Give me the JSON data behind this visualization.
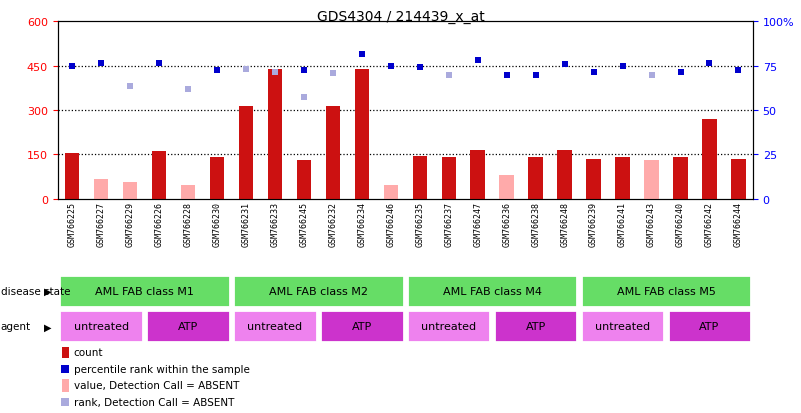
{
  "title": "GDS4304 / 214439_x_at",
  "samples": [
    "GSM766225",
    "GSM766227",
    "GSM766229",
    "GSM766226",
    "GSM766228",
    "GSM766230",
    "GSM766231",
    "GSM766233",
    "GSM766245",
    "GSM766232",
    "GSM766234",
    "GSM766246",
    "GSM766235",
    "GSM766237",
    "GSM766247",
    "GSM766236",
    "GSM766238",
    "GSM766248",
    "GSM766239",
    "GSM766241",
    "GSM766243",
    "GSM766240",
    "GSM766242",
    "GSM766244"
  ],
  "count": [
    155,
    0,
    0,
    160,
    0,
    140,
    315,
    440,
    130,
    315,
    440,
    0,
    145,
    140,
    165,
    0,
    140,
    165,
    135,
    140,
    0,
    140,
    270,
    135
  ],
  "count_absent": [
    0,
    65,
    55,
    0,
    45,
    0,
    0,
    0,
    0,
    0,
    0,
    45,
    0,
    0,
    0,
    80,
    0,
    0,
    0,
    0,
    130,
    0,
    0,
    0
  ],
  "rank_present": [
    450,
    460,
    0,
    460,
    0,
    435,
    0,
    0,
    435,
    0,
    490,
    450,
    445,
    0,
    470,
    420,
    420,
    455,
    430,
    450,
    0,
    430,
    460,
    435
  ],
  "rank_absent": [
    0,
    0,
    380,
    0,
    370,
    0,
    440,
    430,
    345,
    425,
    0,
    0,
    0,
    420,
    0,
    0,
    0,
    0,
    0,
    0,
    420,
    0,
    0,
    0
  ],
  "ylim_left": [
    0,
    600
  ],
  "ylim_right": [
    0,
    100
  ],
  "yticks_left": [
    0,
    150,
    300,
    450,
    600
  ],
  "yticks_right": [
    0,
    25,
    50,
    75,
    100
  ],
  "disease_groups": [
    {
      "label": "AML FAB class M1",
      "start": 0,
      "end": 6
    },
    {
      "label": "AML FAB class M2",
      "start": 6,
      "end": 12
    },
    {
      "label": "AML FAB class M4",
      "start": 12,
      "end": 18
    },
    {
      "label": "AML FAB class M5",
      "start": 18,
      "end": 24
    }
  ],
  "agent_groups": [
    {
      "label": "untreated",
      "start": 0,
      "end": 3
    },
    {
      "label": "ATP",
      "start": 3,
      "end": 6
    },
    {
      "label": "untreated",
      "start": 6,
      "end": 9
    },
    {
      "label": "ATP",
      "start": 9,
      "end": 12
    },
    {
      "label": "untreated",
      "start": 12,
      "end": 15
    },
    {
      "label": "ATP",
      "start": 15,
      "end": 18
    },
    {
      "label": "untreated",
      "start": 18,
      "end": 21
    },
    {
      "label": "ATP",
      "start": 21,
      "end": 24
    }
  ],
  "bar_color": "#cc1111",
  "bar_absent_color": "#ffaaaa",
  "dot_color": "#0000cc",
  "dot_absent_color": "#aaaadd",
  "disease_color": "#66dd66",
  "agent_untreated_color": "#ee82ee",
  "agent_atp_color": "#cc33cc",
  "xtick_bg": "#c8c8c8",
  "legend_items": [
    {
      "label": "count",
      "color": "#cc1111",
      "type": "bar"
    },
    {
      "label": "percentile rank within the sample",
      "color": "#0000cc",
      "type": "square"
    },
    {
      "label": "value, Detection Call = ABSENT",
      "color": "#ffaaaa",
      "type": "bar"
    },
    {
      "label": "rank, Detection Call = ABSENT",
      "color": "#aaaadd",
      "type": "square"
    }
  ]
}
